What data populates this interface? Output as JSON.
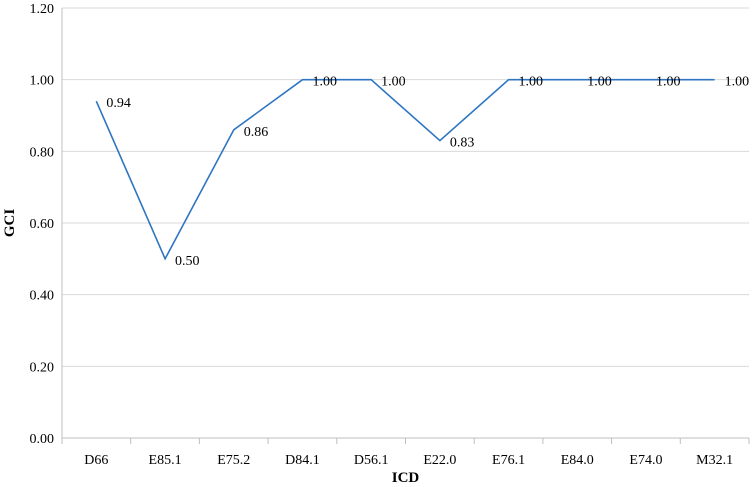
{
  "chart_data": {
    "type": "line",
    "categories": [
      "D66",
      "E85.1",
      "E75.2",
      "D84.1",
      "D56.1",
      "E22.0",
      "E76.1",
      "E84.0",
      "E74.0",
      "M32.1"
    ],
    "series": [
      {
        "values": [
          0.94,
          0.5,
          0.86,
          1.0,
          1.0,
          0.83,
          1.0,
          1.0,
          1.0,
          1.0
        ],
        "labels": [
          "0.94",
          "0.50",
          "0.86",
          "1.00",
          "1.00",
          "0.83",
          "1.00",
          "1.00",
          "1.00",
          "1.00"
        ],
        "color": "#2e75c2"
      }
    ],
    "xlabel": "ICD",
    "ylabel": "GCI",
    "ylim": [
      0,
      1.2
    ],
    "yticks": [
      "0.00",
      "0.20",
      "0.40",
      "0.60",
      "0.80",
      "1.00",
      "1.20"
    ],
    "ytick_values": [
      0,
      0.2,
      0.4,
      0.6,
      0.8,
      1.0,
      1.2
    ],
    "grid": true,
    "legend": "none"
  }
}
